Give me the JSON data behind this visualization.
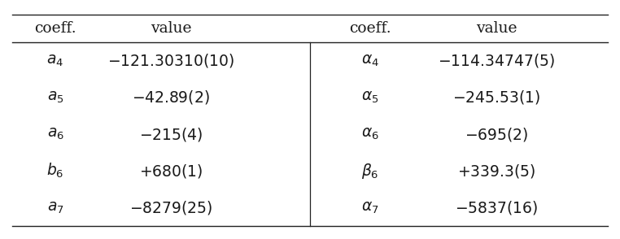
{
  "left_header": [
    "coeff.",
    "value"
  ],
  "right_header": [
    "coeff.",
    "value"
  ],
  "left_rows": [
    [
      "$a_4$",
      "$-121.30310(10)$"
    ],
    [
      "$a_5$",
      "$-42.89(2)$"
    ],
    [
      "$a_6$",
      "$-215(4)$"
    ],
    [
      "$b_6$",
      "$+680(1)$"
    ],
    [
      "$a_7$",
      "$-8279(25)$"
    ]
  ],
  "right_rows": [
    [
      "$\\alpha_4$",
      "$-114.34747(5)$"
    ],
    [
      "$\\alpha_5$",
      "$-245.53(1)$"
    ],
    [
      "$\\alpha_6$",
      "$-695(2)$"
    ],
    [
      "$\\beta_6$",
      "$+339.3(5)$"
    ],
    [
      "$\\alpha_7$",
      "$-5837(16)$"
    ]
  ],
  "bg_color": "#ffffff",
  "text_color": "#1a1a1a",
  "line_color": "#222222",
  "font_size": 13.5,
  "header_font_size": 13.5
}
